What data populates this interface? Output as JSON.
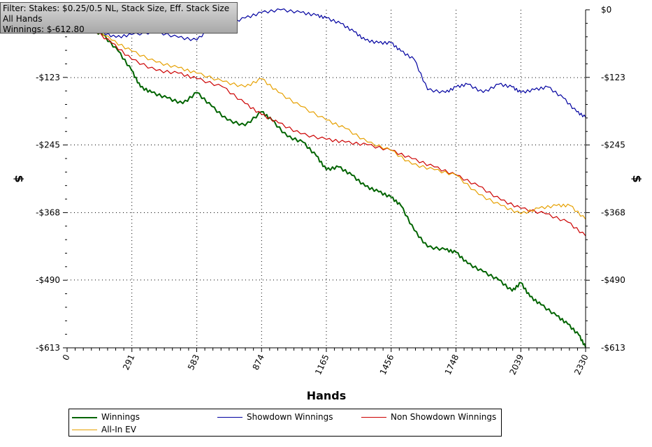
{
  "info_box": {
    "filter": "Filter: Stakes: $0.25/0.5 NL, Stack Size, Eff. Stack Size",
    "hands": "All Hands",
    "winnings": "Winnings: $-612.80"
  },
  "colors": {
    "winnings": "#006400",
    "showdown": "#0000a0",
    "non_showdown": "#cc0000",
    "allin_ev": "#e6a000"
  },
  "chart_data": {
    "type": "line",
    "xlabel": "Hands",
    "ylabel_left": "$",
    "ylabel_right": "$",
    "xlim": [
      0,
      2330
    ],
    "ylim": [
      -613,
      0
    ],
    "x_ticks": [
      "0",
      "291",
      "583",
      "874",
      "1165",
      "1456",
      "1748",
      "2039",
      "2330"
    ],
    "x_tick_values": [
      0,
      291,
      583,
      874,
      1165,
      1456,
      1748,
      2039,
      2330
    ],
    "y_ticks": [
      "$0",
      "-$123",
      "-$245",
      "-$368",
      "-$490",
      "-$613"
    ],
    "y_tick_values": [
      0,
      -123,
      -245,
      -368,
      -490,
      -613
    ],
    "grid": true,
    "legend_position": "bottom",
    "series": [
      {
        "name": "Winnings",
        "color_key": "winnings",
        "points": [
          [
            0,
            -20
          ],
          [
            100,
            -35
          ],
          [
            160,
            -45
          ],
          [
            230,
            -75
          ],
          [
            290,
            -110
          ],
          [
            330,
            -140
          ],
          [
            380,
            -150
          ],
          [
            450,
            -160
          ],
          [
            520,
            -170
          ],
          [
            583,
            -150
          ],
          [
            650,
            -175
          ],
          [
            720,
            -200
          ],
          [
            800,
            -210
          ],
          [
            874,
            -185
          ],
          [
            920,
            -200
          ],
          [
            990,
            -230
          ],
          [
            1060,
            -240
          ],
          [
            1120,
            -265
          ],
          [
            1165,
            -290
          ],
          [
            1220,
            -285
          ],
          [
            1280,
            -300
          ],
          [
            1340,
            -320
          ],
          [
            1400,
            -330
          ],
          [
            1456,
            -340
          ],
          [
            1500,
            -355
          ],
          [
            1560,
            -400
          ],
          [
            1620,
            -430
          ],
          [
            1700,
            -435
          ],
          [
            1748,
            -440
          ],
          [
            1800,
            -460
          ],
          [
            1870,
            -475
          ],
          [
            1940,
            -490
          ],
          [
            2000,
            -510
          ],
          [
            2039,
            -495
          ],
          [
            2080,
            -520
          ],
          [
            2130,
            -535
          ],
          [
            2200,
            -555
          ],
          [
            2250,
            -570
          ],
          [
            2300,
            -590
          ],
          [
            2330,
            -612
          ]
        ]
      },
      {
        "name": "Showdown Winnings",
        "color_key": "showdown",
        "points": [
          [
            0,
            -22
          ],
          [
            150,
            -40
          ],
          [
            220,
            -50
          ],
          [
            291,
            -45
          ],
          [
            400,
            -40
          ],
          [
            500,
            -50
          ],
          [
            583,
            -55
          ],
          [
            650,
            -30
          ],
          [
            720,
            -25
          ],
          [
            800,
            -15
          ],
          [
            874,
            -5
          ],
          [
            960,
            0
          ],
          [
            1050,
            -5
          ],
          [
            1120,
            -10
          ],
          [
            1165,
            -15
          ],
          [
            1230,
            -25
          ],
          [
            1290,
            -40
          ],
          [
            1340,
            -55
          ],
          [
            1400,
            -60
          ],
          [
            1456,
            -60
          ],
          [
            1500,
            -75
          ],
          [
            1560,
            -90
          ],
          [
            1620,
            -145
          ],
          [
            1700,
            -150
          ],
          [
            1748,
            -140
          ],
          [
            1800,
            -135
          ],
          [
            1870,
            -150
          ],
          [
            1940,
            -135
          ],
          [
            2000,
            -140
          ],
          [
            2039,
            -150
          ],
          [
            2100,
            -145
          ],
          [
            2160,
            -140
          ],
          [
            2230,
            -160
          ],
          [
            2290,
            -185
          ],
          [
            2330,
            -195
          ]
        ]
      },
      {
        "name": "Non Showdown Winnings",
        "color_key": "non_showdown",
        "points": [
          [
            0,
            -20
          ],
          [
            100,
            -30
          ],
          [
            200,
            -60
          ],
          [
            291,
            -90
          ],
          [
            400,
            -110
          ],
          [
            500,
            -115
          ],
          [
            583,
            -125
          ],
          [
            700,
            -140
          ],
          [
            800,
            -170
          ],
          [
            874,
            -190
          ],
          [
            950,
            -205
          ],
          [
            1050,
            -225
          ],
          [
            1165,
            -235
          ],
          [
            1250,
            -240
          ],
          [
            1350,
            -245
          ],
          [
            1456,
            -255
          ],
          [
            1550,
            -270
          ],
          [
            1650,
            -285
          ],
          [
            1748,
            -300
          ],
          [
            1850,
            -320
          ],
          [
            1950,
            -345
          ],
          [
            2039,
            -360
          ],
          [
            2150,
            -370
          ],
          [
            2250,
            -385
          ],
          [
            2330,
            -410
          ]
        ]
      },
      {
        "name": "All-In EV",
        "color_key": "allin_ev",
        "points": [
          [
            0,
            -20
          ],
          [
            100,
            -25
          ],
          [
            200,
            -55
          ],
          [
            291,
            -75
          ],
          [
            400,
            -95
          ],
          [
            500,
            -105
          ],
          [
            583,
            -115
          ],
          [
            700,
            -130
          ],
          [
            800,
            -140
          ],
          [
            874,
            -125
          ],
          [
            950,
            -150
          ],
          [
            1050,
            -175
          ],
          [
            1165,
            -200
          ],
          [
            1250,
            -215
          ],
          [
            1350,
            -240
          ],
          [
            1456,
            -255
          ],
          [
            1550,
            -280
          ],
          [
            1650,
            -290
          ],
          [
            1748,
            -300
          ],
          [
            1850,
            -335
          ],
          [
            1950,
            -355
          ],
          [
            2039,
            -370
          ],
          [
            2120,
            -360
          ],
          [
            2200,
            -355
          ],
          [
            2260,
            -355
          ],
          [
            2330,
            -380
          ]
        ]
      }
    ]
  }
}
